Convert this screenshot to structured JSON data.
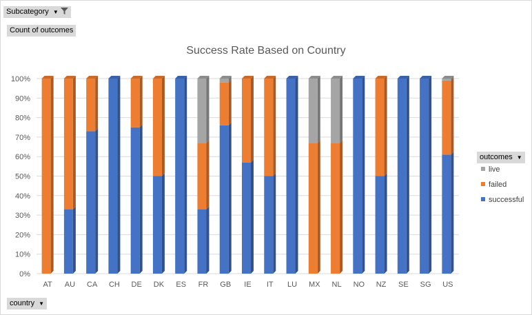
{
  "pivot": {
    "filter_label": "Subcategory",
    "values_label": "Count of outcomes",
    "axis_field_label": "country",
    "legend_field_label": "outcomes"
  },
  "colors": {
    "successful": "#4472c4",
    "failed": "#ed7d31",
    "live": "#a5a5a5",
    "gridline": "#d9d9d9",
    "axis_text": "#595959"
  },
  "chart_data": {
    "type": "bar",
    "stacked": "percent",
    "title": "Success Rate Based on Country",
    "categories": [
      "AT",
      "AU",
      "CA",
      "CH",
      "DE",
      "DK",
      "ES",
      "FR",
      "GB",
      "IE",
      "IT",
      "LU",
      "MX",
      "NL",
      "NO",
      "NZ",
      "SE",
      "SG",
      "US"
    ],
    "series": [
      {
        "name": "successful",
        "values": [
          0,
          33,
          73,
          100,
          75,
          50,
          100,
          33,
          76,
          57,
          50,
          100,
          0,
          0,
          100,
          50,
          100,
          100,
          61
        ]
      },
      {
        "name": "failed",
        "values": [
          100,
          67,
          27,
          0,
          25,
          50,
          0,
          34,
          22,
          43,
          50,
          0,
          67,
          67,
          0,
          50,
          0,
          0,
          38
        ]
      },
      {
        "name": "live",
        "values": [
          0,
          0,
          0,
          0,
          0,
          0,
          0,
          33,
          2,
          0,
          0,
          0,
          33,
          33,
          0,
          0,
          0,
          0,
          1
        ]
      }
    ],
    "legend_order": [
      "live",
      "failed",
      "successful"
    ],
    "y_ticks": [
      "0%",
      "10%",
      "20%",
      "30%",
      "40%",
      "50%",
      "60%",
      "70%",
      "80%",
      "90%",
      "100%"
    ],
    "ylim": [
      0,
      100
    ],
    "grid": true,
    "legend_position": "right"
  }
}
